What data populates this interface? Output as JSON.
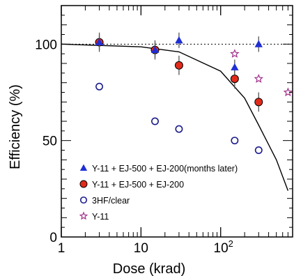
{
  "chart_data": {
    "type": "scatter",
    "xlabel": "Dose (krad)",
    "ylabel": "Efficiency (%)",
    "xscale": "log",
    "xlim": [
      1,
      800
    ],
    "ylim": [
      0,
      120
    ],
    "x_ticks": [
      {
        "value": 1,
        "label": "1"
      },
      {
        "value": 10,
        "label": "10"
      },
      {
        "value": 100,
        "label": "10",
        "exp": "2"
      }
    ],
    "y_ticks": [
      {
        "value": 0,
        "label": "0"
      },
      {
        "value": 50,
        "label": "50"
      },
      {
        "value": 100,
        "label": "100"
      }
    ],
    "reference_line": {
      "y": 100,
      "style": "dotted"
    },
    "fit_curve": {
      "description_values": [
        [
          1,
          100
        ],
        [
          10,
          98.6
        ],
        [
          30,
          96
        ],
        [
          100,
          86
        ],
        [
          200,
          72
        ],
        [
          300,
          58
        ],
        [
          500,
          40
        ],
        [
          700,
          24
        ]
      ]
    },
    "legend_position": "bottom-left",
    "series": [
      {
        "name": "Y-11 + EJ-500 + EJ-200(months later)",
        "marker": "triangle",
        "color": "#1f2fd6",
        "points": [
          {
            "x": 3,
            "y": 101,
            "err": 4
          },
          {
            "x": 15,
            "y": 97,
            "err": 4
          },
          {
            "x": 30,
            "y": 102,
            "err": 4
          },
          {
            "x": 150,
            "y": 88,
            "err": 4
          },
          {
            "x": 300,
            "y": 100,
            "err": 4
          }
        ]
      },
      {
        "name": "Y-11 + EJ-500 + EJ-200",
        "marker": "circle-filled",
        "color": "#e02b1c",
        "points": [
          {
            "x": 3,
            "y": 101,
            "err": 5
          },
          {
            "x": 15,
            "y": 97,
            "err": 5
          },
          {
            "x": 30,
            "y": 89,
            "err": 5
          },
          {
            "x": 150,
            "y": 82,
            "err": 5
          },
          {
            "x": 300,
            "y": 70,
            "err": 5
          }
        ]
      },
      {
        "name": "3HF/clear",
        "marker": "circle-open",
        "color": "#1a1a8c",
        "points": [
          {
            "x": 3,
            "y": 78
          },
          {
            "x": 15,
            "y": 60
          },
          {
            "x": 30,
            "y": 56
          },
          {
            "x": 150,
            "y": 50
          },
          {
            "x": 300,
            "y": 45
          }
        ]
      },
      {
        "name": "Y-11",
        "marker": "star-open",
        "color": "#a0308a",
        "points": [
          {
            "x": 150,
            "y": 95
          },
          {
            "x": 300,
            "y": 82
          },
          {
            "x": 700,
            "y": 75
          }
        ]
      }
    ]
  }
}
